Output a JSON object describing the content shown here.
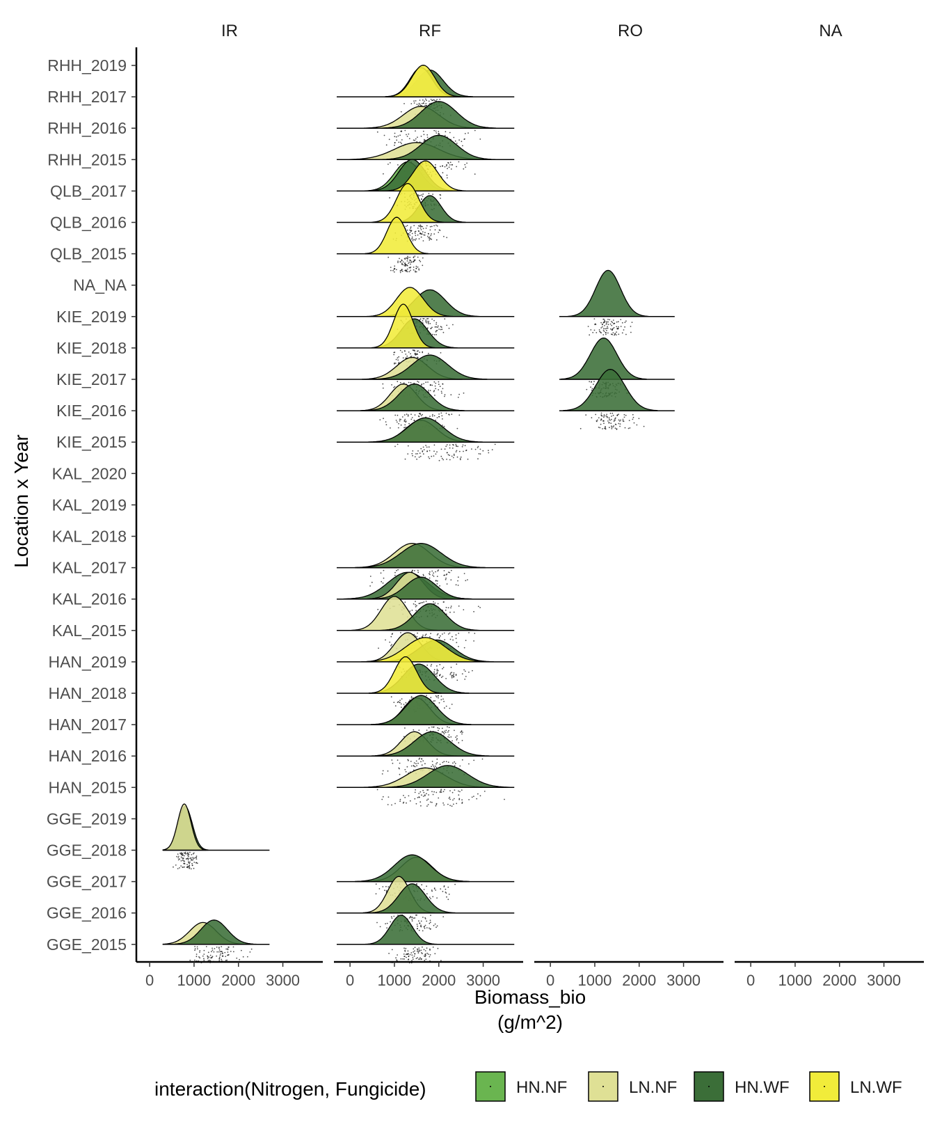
{
  "chart_data": {
    "type": "ridgeline",
    "facets": [
      "IR",
      "RF",
      "RO",
      "NA"
    ],
    "ylabel": "Location x Year",
    "xlabel_line1": "Biomass_bio",
    "xlabel_line2": "(g/m^2)",
    "x_ticks": [
      "0",
      "1000",
      "2000",
      "3000"
    ],
    "x_tick_values": [
      0,
      1000,
      2000,
      3000
    ],
    "xlim": [
      -300,
      3900
    ],
    "categories": [
      "RHH_2019",
      "RHH_2017",
      "RHH_2016",
      "RHH_2015",
      "QLB_2017",
      "QLB_2016",
      "QLB_2015",
      "NA_NA",
      "KIE_2019",
      "KIE_2018",
      "KIE_2017",
      "KIE_2016",
      "KIE_2015",
      "KAL_2020",
      "KAL_2019",
      "KAL_2018",
      "KAL_2017",
      "KAL_2016",
      "KAL_2015",
      "HAN_2019",
      "HAN_2018",
      "HAN_2017",
      "HAN_2016",
      "HAN_2015",
      "GGE_2019",
      "GGE_2018",
      "GGE_2017",
      "GGE_2016",
      "GGE_2015"
    ],
    "legend": {
      "title": "interaction(Nitrogen, Fungicide)",
      "position": "bottom",
      "items": [
        {
          "key": "HN.NF",
          "label": "HN.NF",
          "color": "#6ab550"
        },
        {
          "key": "LN.NF",
          "label": "LN.NF",
          "color": "#dfe095"
        },
        {
          "key": "HN.WF",
          "label": "HN.WF",
          "color": "#3b6e38"
        },
        {
          "key": "LN.WF",
          "label": "LN.WF",
          "color": "#f1ec3a"
        }
      ]
    },
    "ridges": [
      {
        "facet": "RF",
        "row": "RHH_2017",
        "range": [
          -300,
          3700
        ],
        "jitter": [
          1100,
          2400
        ],
        "densities": [
          {
            "group": "HN.WF",
            "mean": 1800,
            "sd": 300,
            "height": 0.55
          },
          {
            "group": "LN.NF",
            "mean": 1600,
            "sd": 250,
            "height": 0.6
          },
          {
            "group": "LN.WF",
            "mean": 1650,
            "sd": 260,
            "height": 0.65
          }
        ]
      },
      {
        "facet": "RF",
        "row": "RHH_2016",
        "range": [
          -300,
          3700
        ],
        "jitter": [
          300,
          3200
        ],
        "densities": [
          {
            "group": "LN.NF",
            "mean": 1600,
            "sd": 400,
            "height": 0.45
          },
          {
            "group": "HN.WF",
            "mean": 2000,
            "sd": 400,
            "height": 0.55
          }
        ]
      },
      {
        "facet": "RF",
        "row": "RHH_2015",
        "range": [
          -300,
          3700
        ],
        "jitter": [
          400,
          3000
        ],
        "densities": [
          {
            "group": "LN.NF",
            "mean": 1500,
            "sd": 500,
            "height": 0.35
          },
          {
            "group": "HN.WF",
            "mean": 2000,
            "sd": 400,
            "height": 0.5
          }
        ]
      },
      {
        "facet": "RF",
        "row": "QLB_2017",
        "range": [
          -300,
          3700
        ],
        "jitter": [
          800,
          2300
        ],
        "densities": [
          {
            "group": "HN.NF",
            "mean": 1300,
            "sd": 300,
            "height": 0.6
          },
          {
            "group": "HN.WF",
            "mean": 1400,
            "sd": 300,
            "height": 0.65
          },
          {
            "group": "LN.WF",
            "mean": 1700,
            "sd": 280,
            "height": 0.62
          }
        ]
      },
      {
        "facet": "RF",
        "row": "QLB_2016",
        "range": [
          -300,
          3700
        ],
        "jitter": [
          800,
          2300
        ],
        "densities": [
          {
            "group": "HN.WF",
            "mean": 1800,
            "sd": 250,
            "height": 0.55
          },
          {
            "group": "LN.WF",
            "mean": 1300,
            "sd": 250,
            "height": 0.8
          }
        ]
      },
      {
        "facet": "RF",
        "row": "QLB_2015",
        "range": [
          -300,
          3700
        ],
        "jitter": [
          700,
          1800
        ],
        "densities": [
          {
            "group": "LN.WF",
            "mean": 1050,
            "sd": 220,
            "height": 0.75
          }
        ]
      },
      {
        "facet": "RF",
        "row": "KIE_2019",
        "range": [
          -300,
          3700
        ],
        "jitter": [
          800,
          2500
        ],
        "densities": [
          {
            "group": "HN.WF",
            "mean": 1800,
            "sd": 350,
            "height": 0.55
          },
          {
            "group": "LN.WF",
            "mean": 1350,
            "sd": 300,
            "height": 0.6
          }
        ]
      },
      {
        "facet": "RF",
        "row": "KIE_2018",
        "range": [
          -300,
          3700
        ],
        "jitter": [
          700,
          2200
        ],
        "densities": [
          {
            "group": "HN.WF",
            "mean": 1450,
            "sd": 300,
            "height": 0.6
          },
          {
            "group": "LN.WF",
            "mean": 1200,
            "sd": 220,
            "height": 0.9
          }
        ]
      },
      {
        "facet": "RF",
        "row": "KIE_2017",
        "range": [
          -300,
          3700
        ],
        "jitter": [
          500,
          2700
        ],
        "densities": [
          {
            "group": "LN.NF",
            "mean": 1400,
            "sd": 350,
            "height": 0.45
          },
          {
            "group": "HN.WF",
            "mean": 1800,
            "sd": 400,
            "height": 0.5
          }
        ]
      },
      {
        "facet": "RF",
        "row": "KIE_2016",
        "range": [
          -300,
          3700
        ],
        "jitter": [
          400,
          2800
        ],
        "densities": [
          {
            "group": "LN.NF",
            "mean": 1200,
            "sd": 300,
            "height": 0.55
          },
          {
            "group": "HN.WF",
            "mean": 1450,
            "sd": 350,
            "height": 0.55
          }
        ]
      },
      {
        "facet": "RF",
        "row": "KIE_2015",
        "range": [
          -300,
          3700
        ],
        "jitter": [
          600,
          3500
        ],
        "densities": [
          {
            "group": "LN.NF",
            "mean": 1600,
            "sd": 350,
            "height": 0.45
          },
          {
            "group": "HN.WF",
            "mean": 1700,
            "sd": 400,
            "height": 0.5
          }
        ]
      },
      {
        "facet": "RF",
        "row": "KAL_2017",
        "range": [
          -300,
          3700
        ],
        "jitter": [
          300,
          3000
        ],
        "densities": [
          {
            "group": "LN.NF",
            "mean": 1400,
            "sd": 400,
            "height": 0.5
          },
          {
            "group": "HN.WF",
            "mean": 1600,
            "sd": 450,
            "height": 0.5
          }
        ]
      },
      {
        "facet": "RF",
        "row": "KAL_2016",
        "range": [
          -300,
          3700
        ],
        "jitter": [
          400,
          3000
        ],
        "densities": [
          {
            "group": "HN.WF",
            "mean": 1300,
            "sd": 450,
            "height": 0.55
          },
          {
            "group": "LN.NF",
            "mean": 1350,
            "sd": 300,
            "height": 0.55
          },
          {
            "group": "HN.WF",
            "mean": 1600,
            "sd": 350,
            "height": 0.45
          }
        ]
      },
      {
        "facet": "RF",
        "row": "KAL_2015",
        "range": [
          -300,
          3700
        ],
        "jitter": [
          400,
          3200
        ],
        "densities": [
          {
            "group": "LN.NF",
            "mean": 1000,
            "sd": 300,
            "height": 0.7
          },
          {
            "group": "HN.WF",
            "mean": 1800,
            "sd": 350,
            "height": 0.55
          }
        ]
      },
      {
        "facet": "RF",
        "row": "HAN_2019",
        "range": [
          -300,
          3700
        ],
        "jitter": [
          900,
          3000
        ],
        "densities": [
          {
            "group": "LN.NF",
            "mean": 1300,
            "sd": 300,
            "height": 0.6
          },
          {
            "group": "HN.WF",
            "mean": 1950,
            "sd": 400,
            "height": 0.45
          },
          {
            "group": "LN.WF",
            "mean": 1700,
            "sd": 450,
            "height": 0.5
          }
        ]
      },
      {
        "facet": "RF",
        "row": "HAN_2018",
        "range": [
          -300,
          3700
        ],
        "jitter": [
          700,
          2600
        ],
        "densities": [
          {
            "group": "HN.WF",
            "mean": 1550,
            "sd": 350,
            "height": 0.6
          },
          {
            "group": "LN.WF",
            "mean": 1250,
            "sd": 250,
            "height": 0.75
          }
        ]
      },
      {
        "facet": "RF",
        "row": "HAN_2017",
        "range": [
          -300,
          3700
        ],
        "jitter": [
          800,
          3000
        ],
        "densities": [
          {
            "group": "LN.NF",
            "mean": 1500,
            "sd": 300,
            "height": 0.55
          },
          {
            "group": "HN.WF",
            "mean": 1600,
            "sd": 350,
            "height": 0.6
          }
        ]
      },
      {
        "facet": "RF",
        "row": "HAN_2016",
        "range": [
          -300,
          3700
        ],
        "jitter": [
          400,
          3100
        ],
        "densities": [
          {
            "group": "LN.NF",
            "mean": 1450,
            "sd": 300,
            "height": 0.5
          },
          {
            "group": "HN.WF",
            "mean": 1850,
            "sd": 400,
            "height": 0.5
          }
        ]
      },
      {
        "facet": "RF",
        "row": "HAN_2015",
        "range": [
          -300,
          3700
        ],
        "jitter": [
          400,
          3500
        ],
        "densities": [
          {
            "group": "LN.NF",
            "mean": 1700,
            "sd": 450,
            "height": 0.4
          },
          {
            "group": "HN.WF",
            "mean": 2200,
            "sd": 450,
            "height": 0.45
          }
        ]
      },
      {
        "facet": "RF",
        "row": "GGE_2017",
        "range": [
          -300,
          3700
        ],
        "jitter": [
          0,
          2800
        ],
        "densities": [
          {
            "group": "LN.NF",
            "mean": 1500,
            "sd": 350,
            "height": 0.5
          },
          {
            "group": "HN.WF",
            "mean": 1400,
            "sd": 400,
            "height": 0.55
          }
        ]
      },
      {
        "facet": "RF",
        "row": "GGE_2016",
        "range": [
          -300,
          3700
        ],
        "jitter": [
          500,
          2300
        ],
        "densities": [
          {
            "group": "LN.NF",
            "mean": 1100,
            "sd": 250,
            "height": 0.75
          },
          {
            "group": "HN.WF",
            "mean": 1400,
            "sd": 300,
            "height": 0.6
          }
        ]
      },
      {
        "facet": "RF",
        "row": "GGE_2015",
        "range": [
          -300,
          3700
        ],
        "jitter": [
          700,
          2200
        ],
        "densities": [
          {
            "group": "HN.WF",
            "mean": 1150,
            "sd": 250,
            "height": 0.6
          }
        ]
      },
      {
        "facet": "IR",
        "row": "GGE_2018",
        "range": [
          300,
          2700
        ],
        "jitter": [
          500,
          1200
        ],
        "densities": [
          {
            "group": "HN.WF",
            "mean": 800,
            "sd": 160,
            "height": 0.9
          },
          {
            "group": "LN.NF",
            "mean": 780,
            "sd": 150,
            "height": 0.95
          }
        ]
      },
      {
        "facet": "IR",
        "row": "GGE_2015",
        "range": [
          300,
          2700
        ],
        "jitter": [
          700,
          2300
        ],
        "densities": [
          {
            "group": "LN.NF",
            "mean": 1200,
            "sd": 300,
            "height": 0.45
          },
          {
            "group": "HN.WF",
            "mean": 1450,
            "sd": 300,
            "height": 0.5
          }
        ]
      },
      {
        "facet": "RO",
        "row": "KIE_2019",
        "range": [
          200,
          2800
        ],
        "jitter": [
          700,
          2000
        ],
        "densities": [
          {
            "group": "HN.WF",
            "mean": 1300,
            "sd": 280,
            "height": 0.95
          }
        ]
      },
      {
        "facet": "RO",
        "row": "KIE_2017",
        "range": [
          200,
          2800
        ],
        "jitter": [
          600,
          1900
        ],
        "densities": [
          {
            "group": "HN.WF",
            "mean": 1200,
            "sd": 300,
            "height": 0.85
          }
        ]
      },
      {
        "facet": "RO",
        "row": "KIE_2016",
        "range": [
          200,
          2800
        ],
        "jitter": [
          500,
          2300
        ],
        "densities": [
          {
            "group": "HN.WF",
            "mean": 1350,
            "sd": 330,
            "height": 0.85
          }
        ]
      }
    ]
  }
}
